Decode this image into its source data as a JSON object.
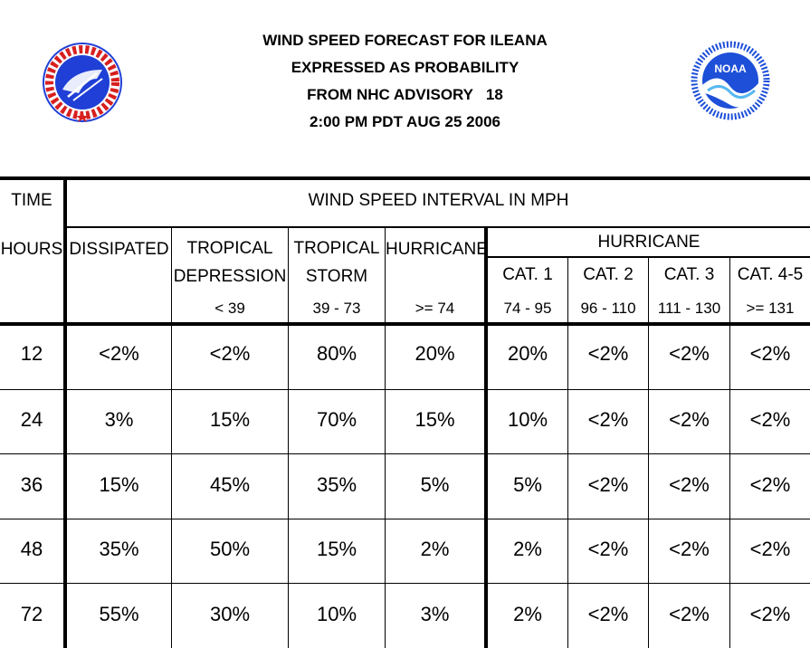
{
  "header": {
    "title_lines": [
      "WIND SPEED FORECAST FOR ILEANA",
      "EXPRESSED AS PROBABILITY",
      "FROM NHC ADVISORY   18",
      "2:00 PM PDT AUG 25 2006"
    ],
    "left_logo": "national-weather-service-logo",
    "right_logo": "noaa-logo",
    "left_logo_text": "NATIONAL WEATHER SERVICE",
    "right_logo_text": "NOAA",
    "right_logo_ring_text": "NATIONAL OCEANIC AND ATMOSPHERIC ADMINISTRATION · U.S. DEPARTMENT OF COMMERCE"
  },
  "table": {
    "time_label": "TIME",
    "interval_label": "WIND SPEED INTERVAL IN MPH",
    "hours_label": "HOURS",
    "columns": [
      {
        "line1": "DISSIPATED",
        "line2": "",
        "range": ""
      },
      {
        "line1": "TROPICAL",
        "line2": "DEPRESSION",
        "range": "< 39"
      },
      {
        "line1": "TROPICAL",
        "line2": "STORM",
        "range": "39 - 73"
      },
      {
        "line1": "HURRICANE",
        "line2": "",
        "range": ">= 74"
      },
      {
        "line1": "CAT. 1",
        "line2": "",
        "range": "74 - 95"
      },
      {
        "line1": "CAT. 2",
        "line2": "",
        "range": "96 - 110"
      },
      {
        "line1": "CAT. 3",
        "line2": "",
        "range": "111 - 130"
      },
      {
        "line1": "CAT. 4-5",
        "line2": "",
        "range": ">= 131"
      }
    ],
    "hurricane_group_label": "HURRICANE",
    "rows": [
      {
        "hours": "12",
        "values": [
          "<2%",
          "<2%",
          "80%",
          "20%",
          "20%",
          "<2%",
          "<2%",
          "<2%"
        ]
      },
      {
        "hours": "24",
        "values": [
          "3%",
          "15%",
          "70%",
          "15%",
          "10%",
          "<2%",
          "<2%",
          "<2%"
        ]
      },
      {
        "hours": "36",
        "values": [
          "15%",
          "45%",
          "35%",
          "5%",
          "5%",
          "<2%",
          "<2%",
          "<2%"
        ]
      },
      {
        "hours": "48",
        "values": [
          "35%",
          "50%",
          "15%",
          "2%",
          "2%",
          "<2%",
          "<2%",
          "<2%"
        ]
      },
      {
        "hours": "72",
        "values": [
          "55%",
          "30%",
          "10%",
          "3%",
          "2%",
          "<2%",
          "<2%",
          "<2%"
        ]
      }
    ]
  },
  "colors": {
    "nws_blue": "#1f3fd6",
    "nws_red": "#d81f1f",
    "noaa_blue": "#1d4fd8",
    "noaa_light": "#58b8f0"
  }
}
